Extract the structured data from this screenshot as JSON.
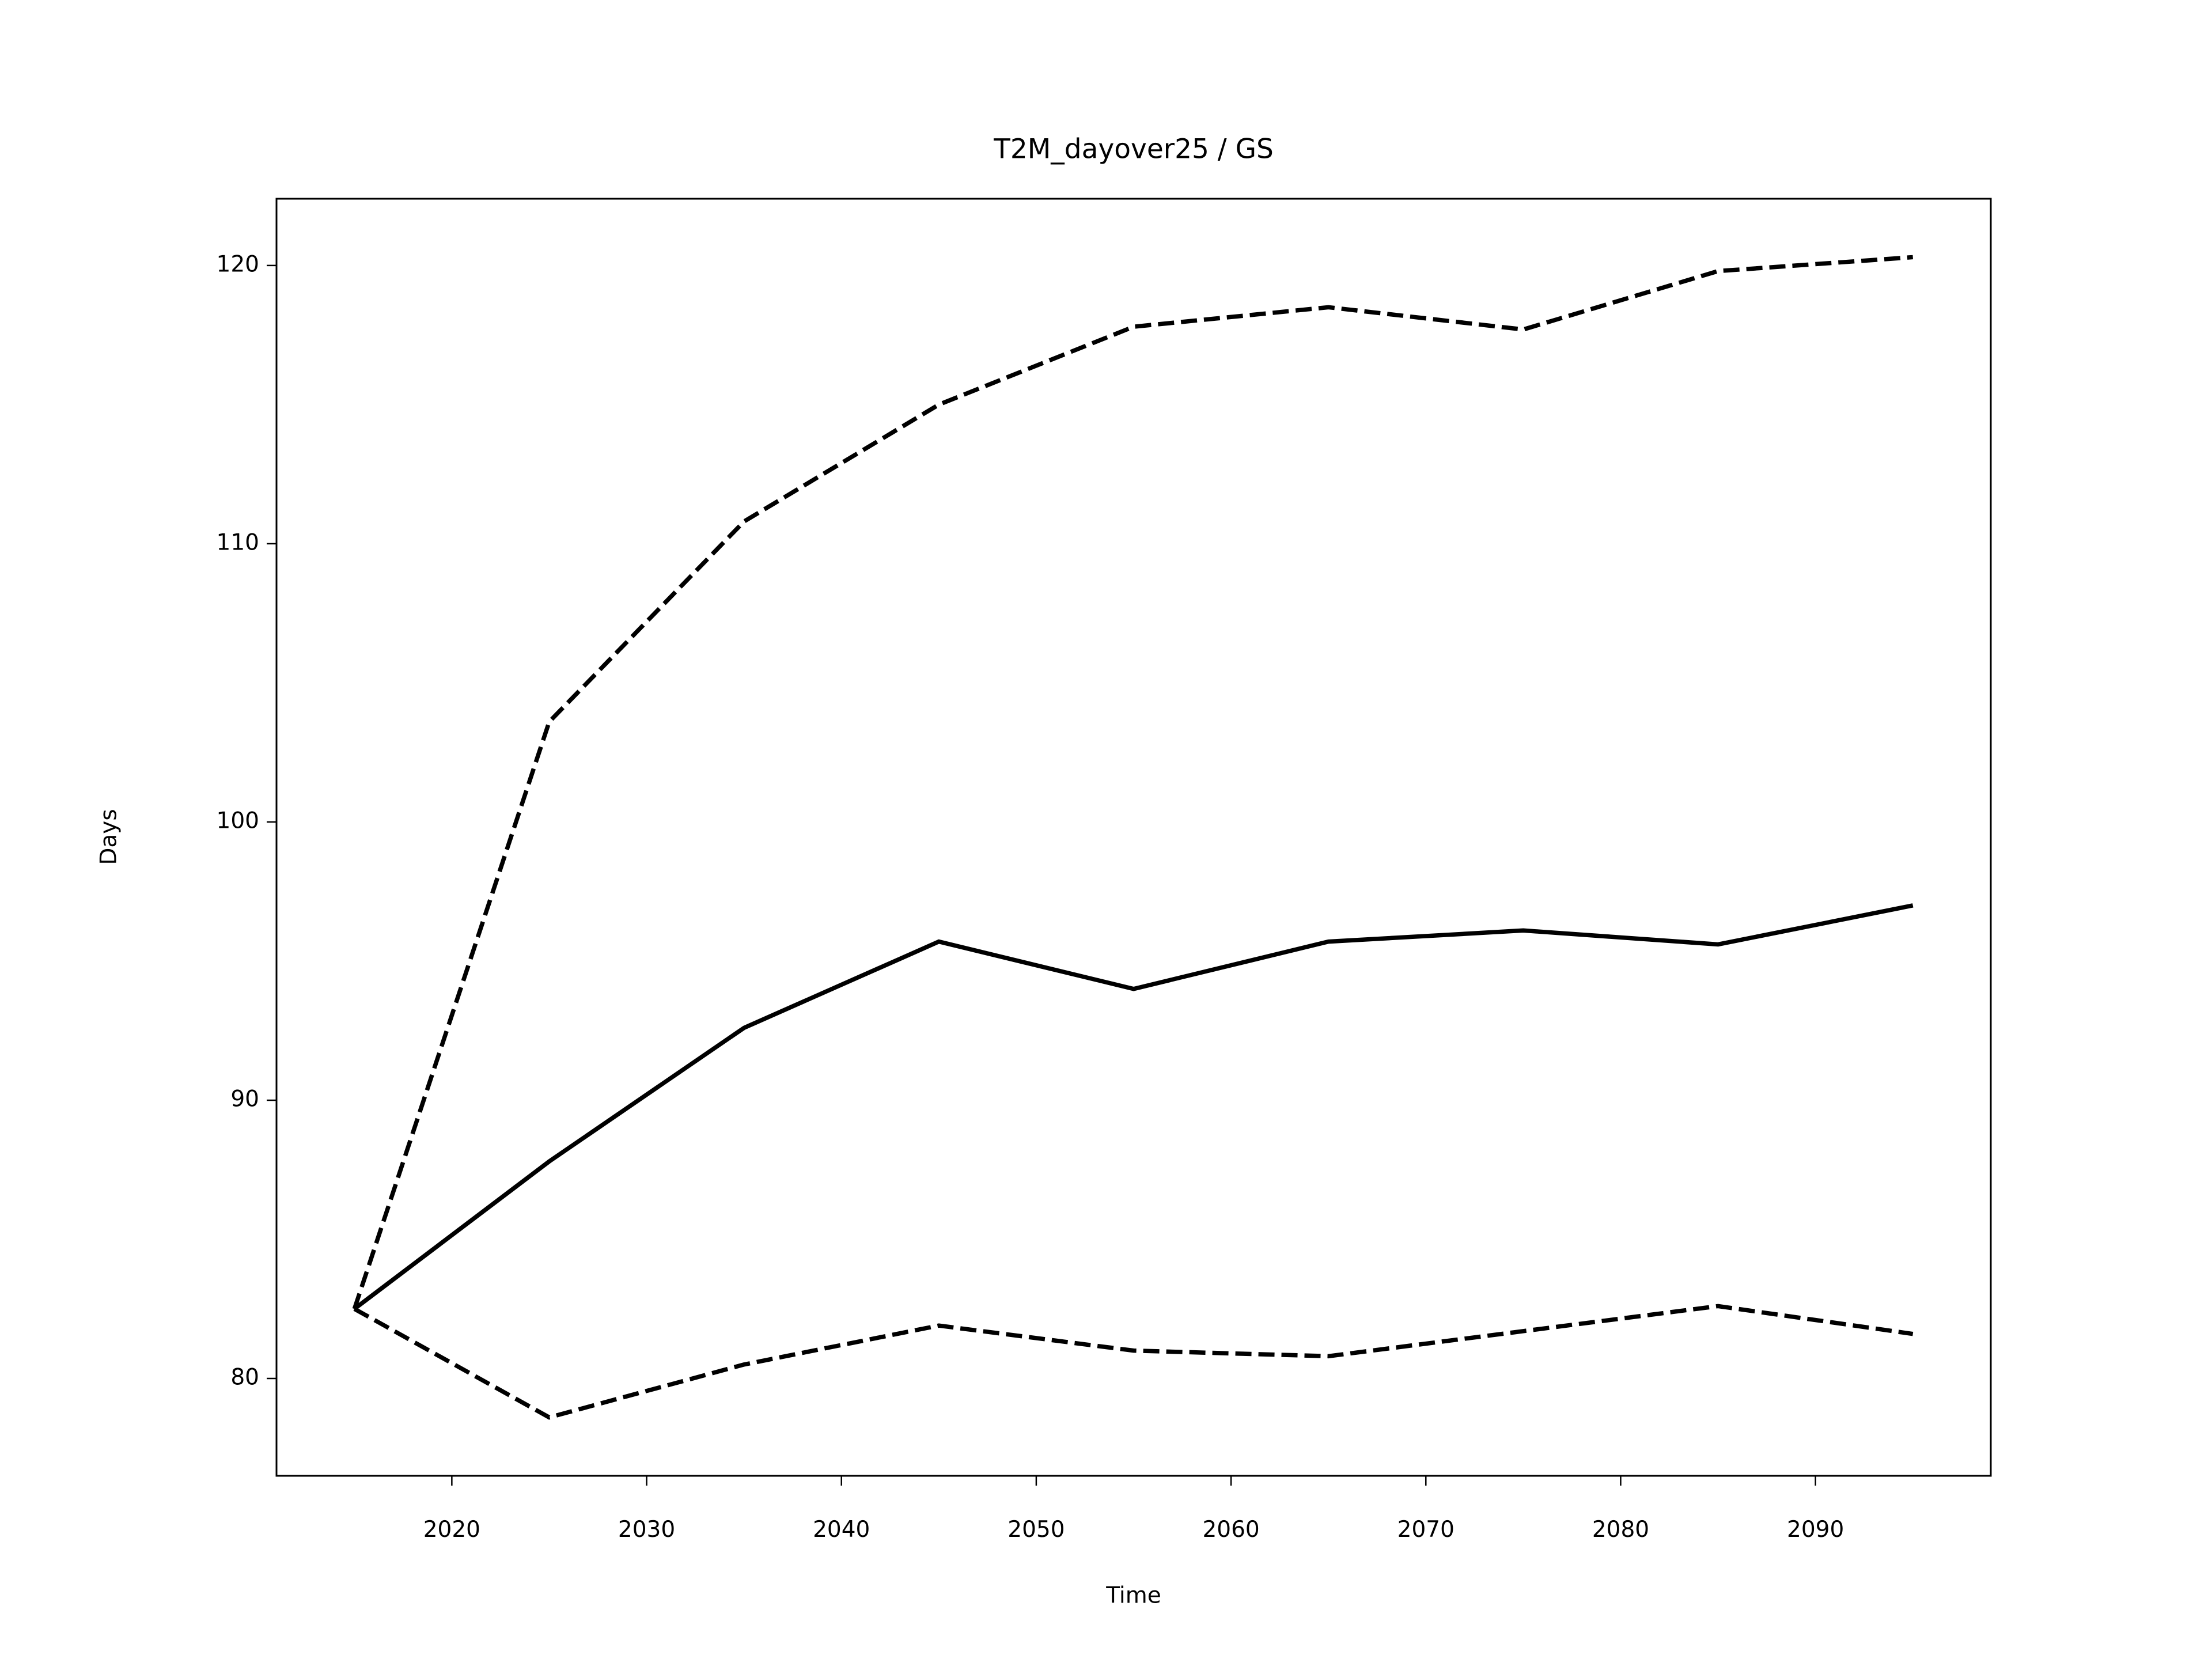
{
  "chart_data": {
    "type": "line",
    "title": "T2M_dayover25 / GS",
    "x_label": "Time",
    "y_label": "Days",
    "x": [
      2015,
      2025,
      2035,
      2045,
      2055,
      2065,
      2075,
      2085,
      2095
    ],
    "series": [
      {
        "color": "#000000",
        "linestyle": "dashed",
        "values": [
          82.5,
          103.6,
          110.8,
          115.0,
          117.8,
          118.5,
          117.7,
          119.8,
          120.3
        ]
      },
      {
        "color": "#000000",
        "linestyle": "solid",
        "values": [
          82.5,
          87.8,
          92.6,
          95.7,
          94.0,
          95.7,
          96.1,
          95.6,
          97.0
        ]
      },
      {
        "color": "#000000",
        "linestyle": "dashed",
        "values": [
          82.5,
          78.6,
          80.5,
          81.9,
          81.0,
          80.8,
          81.7,
          82.6,
          81.6
        ]
      }
    ],
    "xlim": [
      2011,
      2099
    ],
    "xticks": [
      2020,
      2030,
      2040,
      2050,
      2060,
      2070,
      2080,
      2090
    ],
    "ylim": [
      76.5,
      122.4
    ],
    "yticks": [
      80,
      90,
      100,
      110,
      120
    ],
    "grid": false
  }
}
